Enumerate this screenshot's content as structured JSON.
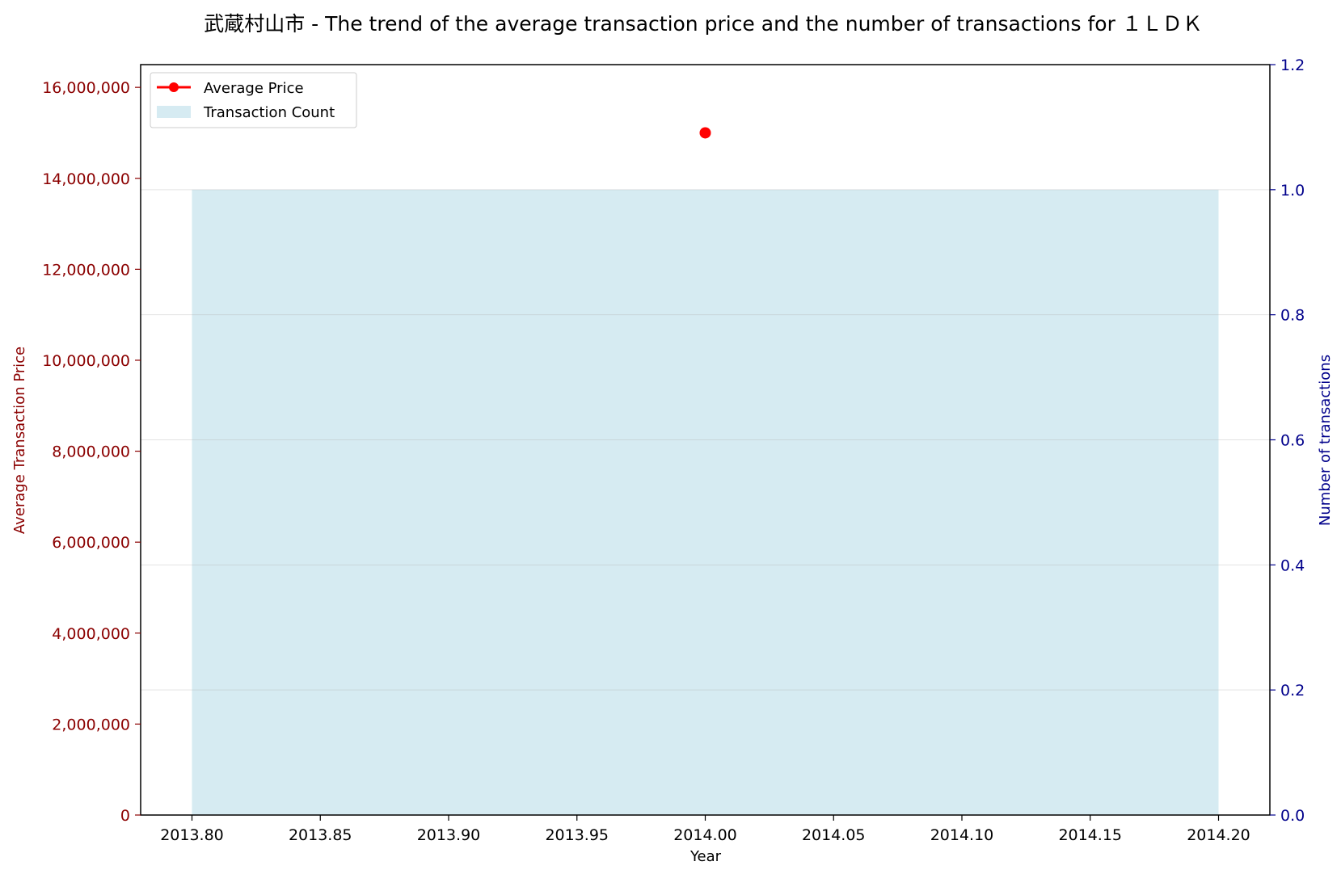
{
  "chart_data": {
    "type": "bar+line",
    "title": "武蔵村山市 - The trend of the average transaction price and the number of transactions for １ＬＤＫ",
    "xlabel": "Year",
    "ylabel_left": "Average Transaction Price",
    "ylabel_right": "Number of transactions",
    "xlim": [
      2013.78,
      2014.22
    ],
    "ylim_left": [
      0,
      16500000
    ],
    "ylim_right": [
      0,
      1.2
    ],
    "x_ticks": [
      2013.8,
      2013.85,
      2013.9,
      2013.95,
      2014.0,
      2014.05,
      2014.1,
      2014.15,
      2014.2
    ],
    "x_tick_labels": [
      "2013.80",
      "2013.85",
      "2013.90",
      "2013.95",
      "2014.00",
      "2014.05",
      "2014.10",
      "2014.15",
      "2014.20"
    ],
    "y_left_ticks": [
      0,
      2000000,
      4000000,
      6000000,
      8000000,
      10000000,
      12000000,
      14000000,
      16000000
    ],
    "y_left_tick_labels": [
      "0",
      "2,000,000",
      "4,000,000",
      "6,000,000",
      "8,000,000",
      "10,000,000",
      "12,000,000",
      "14,000,000",
      "16,000,000"
    ],
    "y_right_ticks": [
      0.0,
      0.2,
      0.4,
      0.6,
      0.8,
      1.0,
      1.2
    ],
    "y_right_tick_labels": [
      "0.0",
      "0.2",
      "0.4",
      "0.6",
      "0.8",
      "1.0",
      "1.2"
    ],
    "grid": true,
    "legend_position": "top-left",
    "series": [
      {
        "name": "Average Price",
        "kind": "line",
        "axis": "left",
        "color": "#ff0000",
        "x": [
          2014
        ],
        "values": [
          15000000
        ]
      },
      {
        "name": "Transaction Count",
        "kind": "bar",
        "axis": "right",
        "color": "#add8e6",
        "x": [
          2014
        ],
        "values": [
          1
        ],
        "bar_width": 0.4
      }
    ],
    "colors": {
      "left_axis": "#8b0000",
      "right_axis": "#00008b"
    }
  }
}
